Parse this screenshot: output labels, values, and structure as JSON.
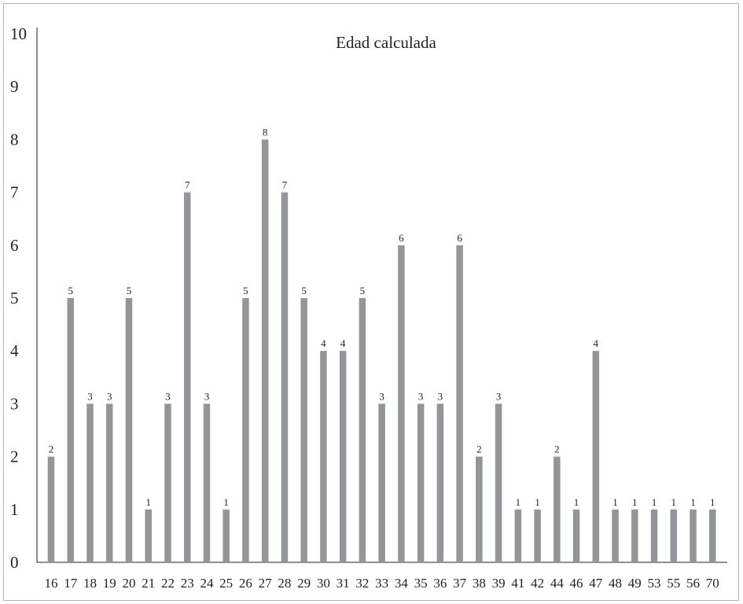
{
  "chart_data": {
    "type": "bar",
    "title": "Edad calculada",
    "xlabel": "",
    "ylabel": "",
    "categories": [
      "16",
      "17",
      "18",
      "19",
      "20",
      "21",
      "22",
      "23",
      "24",
      "25",
      "26",
      "27",
      "28",
      "29",
      "30",
      "31",
      "32",
      "33",
      "34",
      "35",
      "36",
      "37",
      "38",
      "39",
      "41",
      "42",
      "44",
      "46",
      "47",
      "48",
      "49",
      "53",
      "55",
      "56",
      "70"
    ],
    "values": [
      2,
      5,
      3,
      3,
      5,
      1,
      3,
      7,
      3,
      1,
      5,
      8,
      7,
      5,
      4,
      4,
      5,
      3,
      6,
      3,
      3,
      6,
      2,
      3,
      1,
      1,
      2,
      1,
      4,
      1,
      1,
      1,
      1,
      1,
      1
    ],
    "ylim": [
      0,
      10
    ],
    "yticks": [
      0,
      1,
      2,
      3,
      4,
      5,
      6,
      7,
      8,
      9,
      10
    ],
    "grid": false,
    "legend": "none",
    "bar_color": "#939598",
    "axis_color": "#231f20"
  }
}
